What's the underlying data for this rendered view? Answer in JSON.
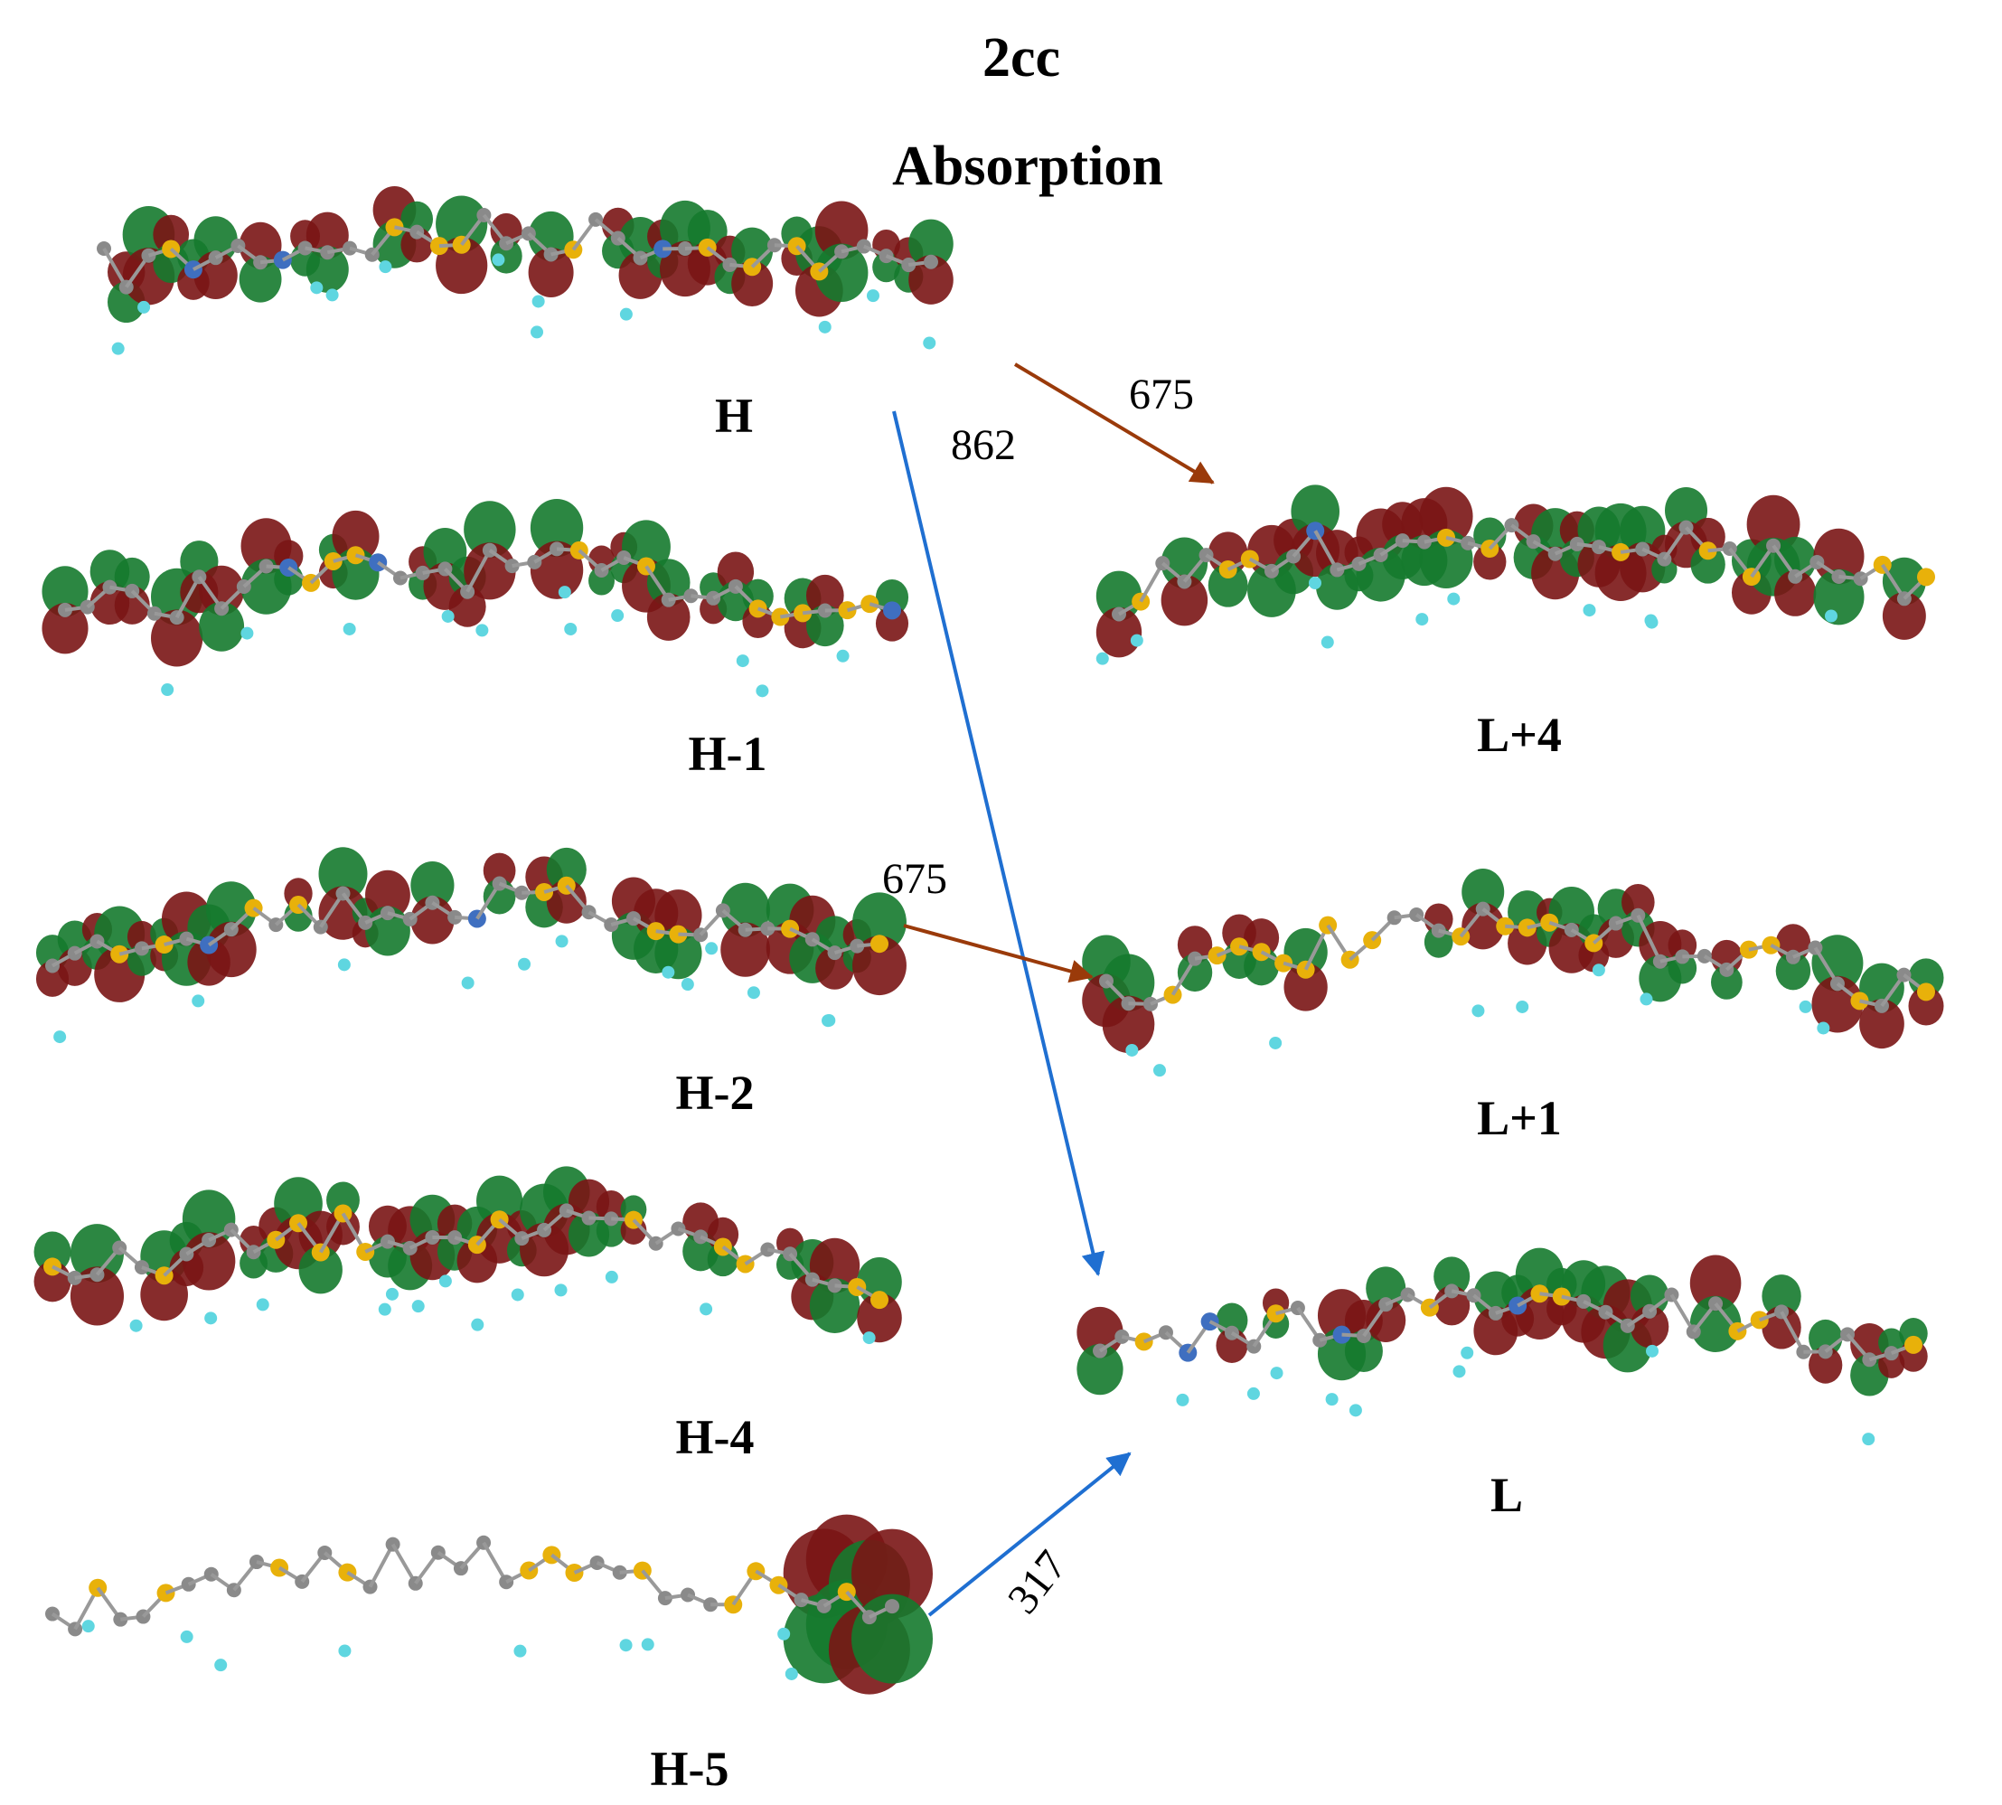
{
  "title": "2cc",
  "subtitle": "Absorption",
  "occupied": [
    {
      "label": "H"
    },
    {
      "label": "H-1"
    },
    {
      "label": "H-2"
    },
    {
      "label": "H-4"
    },
    {
      "label": "H-5"
    }
  ],
  "unoccupied": [
    {
      "label": "L+4"
    },
    {
      "label": "L+1"
    },
    {
      "label": "L"
    }
  ],
  "transitions": [
    {
      "from": "H",
      "to": "L+4",
      "label": "675"
    },
    {
      "from": "H",
      "to": "L",
      "label": "862"
    },
    {
      "from": "H-2",
      "to": "L+1",
      "label": "675"
    },
    {
      "from": "H-5",
      "to": "L",
      "label": "317"
    }
  ]
}
